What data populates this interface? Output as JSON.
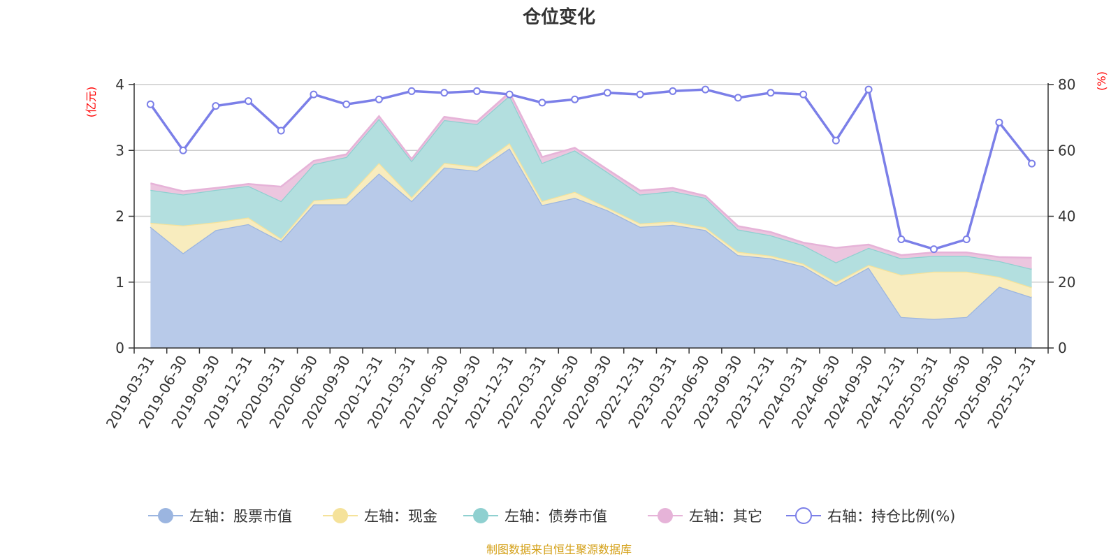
{
  "chart_data": {
    "type": "area+line",
    "title": "仓位变化",
    "left_unit": "(亿元)",
    "right_unit": "(%)",
    "left_axis": {
      "min": 0,
      "max": 4,
      "ticks": [
        0,
        1,
        2,
        3,
        4
      ]
    },
    "right_axis": {
      "min": 0,
      "max": 80,
      "ticks": [
        0,
        20,
        40,
        60,
        80
      ]
    },
    "categories": [
      "2019-03-31",
      "2019-06-30",
      "2019-09-30",
      "2019-12-31",
      "2020-03-31",
      "2020-06-30",
      "2020-09-30",
      "2020-12-31",
      "2021-03-31",
      "2021-06-30",
      "2021-09-30",
      "2021-12-31",
      "2022-03-31",
      "2022-06-30",
      "2022-09-30",
      "2022-12-31",
      "2023-03-31",
      "2023-06-30",
      "2023-09-30",
      "2023-12-31",
      "2024-03-31",
      "2024-06-30",
      "2024-09-30",
      "2024-12-31",
      "2025-03-31",
      "2025-06-30",
      "2025-09-30",
      "2025-12-31"
    ],
    "series": [
      {
        "name": "左轴：股票市值",
        "axis": "left",
        "type": "area",
        "color": "#9bb5e0",
        "fill": "#b8cae9",
        "values": [
          1.84,
          1.44,
          1.79,
          1.88,
          1.62,
          2.18,
          2.18,
          2.65,
          2.23,
          2.74,
          2.69,
          3.03,
          2.17,
          2.28,
          2.09,
          1.84,
          1.87,
          1.79,
          1.41,
          1.36,
          1.24,
          0.95,
          1.22,
          0.47,
          0.44,
          0.47,
          0.93,
          0.77
        ]
      },
      {
        "name": "左轴：现金",
        "axis": "left",
        "type": "area",
        "color": "#f5e29a",
        "fill": "#f8ecbe",
        "values": [
          0.06,
          0.42,
          0.12,
          0.1,
          0.04,
          0.06,
          0.1,
          0.16,
          0.06,
          0.07,
          0.06,
          0.08,
          0.06,
          0.09,
          0.04,
          0.05,
          0.05,
          0.04,
          0.05,
          0.04,
          0.04,
          0.05,
          0.04,
          0.64,
          0.72,
          0.69,
          0.15,
          0.15
        ]
      },
      {
        "name": "左轴：债券市值",
        "axis": "left",
        "type": "area",
        "color": "#8fd0d0",
        "fill": "#b3dfdf",
        "values": [
          0.5,
          0.47,
          0.49,
          0.48,
          0.57,
          0.55,
          0.62,
          0.67,
          0.55,
          0.65,
          0.65,
          0.72,
          0.58,
          0.63,
          0.54,
          0.44,
          0.46,
          0.45,
          0.34,
          0.31,
          0.28,
          0.3,
          0.26,
          0.25,
          0.24,
          0.24,
          0.24,
          0.28
        ]
      },
      {
        "name": "左轴：其它",
        "axis": "left",
        "type": "area",
        "color": "#e6b3d8",
        "fill": "#ecc6df",
        "values": [
          0.1,
          0.05,
          0.03,
          0.03,
          0.22,
          0.05,
          0.04,
          0.04,
          0.03,
          0.05,
          0.04,
          0.05,
          0.09,
          0.04,
          0.04,
          0.06,
          0.05,
          0.03,
          0.05,
          0.05,
          0.04,
          0.22,
          0.05,
          0.05,
          0.05,
          0.05,
          0.06,
          0.17
        ]
      },
      {
        "name": "右轴：持仓比例(%)",
        "axis": "right",
        "type": "line",
        "color": "#7b7fe8",
        "values": [
          74,
          60,
          73.5,
          75,
          66,
          77,
          74,
          75.5,
          78,
          77.5,
          78,
          77,
          74.5,
          75.5,
          77.5,
          77,
          78,
          78.5,
          76,
          77.5,
          77,
          63,
          78.5,
          33,
          30,
          33,
          68.5,
          56
        ]
      }
    ],
    "source": "制图数据来自恒生聚源数据库"
  }
}
